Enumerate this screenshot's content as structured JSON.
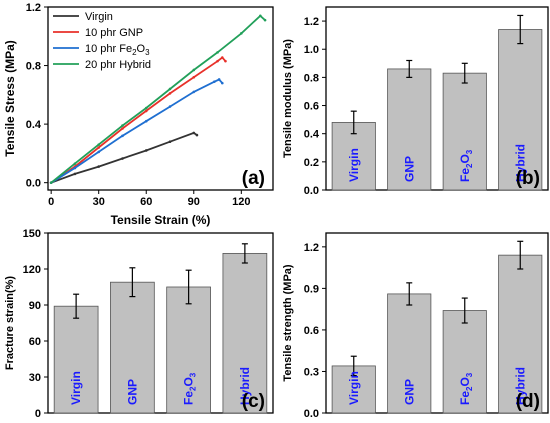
{
  "chart_data": [
    {
      "type": "line",
      "panel_label": "(a)",
      "xlabel": "Tensile Strain (%)",
      "ylabel": "Tensile Stress (MPa)",
      "xlim": [
        -2,
        140
      ],
      "ylim": [
        -0.05,
        1.2
      ],
      "xticks": [
        0,
        30,
        60,
        90,
        120
      ],
      "yticks": [
        0.0,
        0.4,
        0.8,
        1.2
      ],
      "ytick_labels": [
        "0.0",
        "0.4",
        "0.8",
        "1.2"
      ],
      "legend_position": "top-left",
      "series": [
        {
          "name": "Virgin",
          "name_main": "Virgin",
          "name_sub": "",
          "name_tail": "",
          "color": "#333333",
          "x": [
            0,
            15,
            30,
            45,
            60,
            75,
            90,
            92
          ],
          "y": [
            0,
            0.06,
            0.11,
            0.165,
            0.22,
            0.28,
            0.34,
            0.325
          ]
        },
        {
          "name": "10 phr GNP",
          "name_main": "10 phr GNP",
          "name_sub": "",
          "name_tail": "",
          "color": "#e8312a",
          "x": [
            0,
            15,
            30,
            45,
            60,
            75,
            90,
            105,
            108,
            110
          ],
          "y": [
            0,
            0.11,
            0.24,
            0.37,
            0.49,
            0.61,
            0.72,
            0.83,
            0.855,
            0.83
          ]
        },
        {
          "name": "10 phr Fe2O3",
          "name_main": "10 phr Fe",
          "name_sub": "2",
          "name_tail": "O",
          "name_sub2": "3",
          "color": "#1f6fd1",
          "x": [
            0,
            15,
            30,
            45,
            60,
            75,
            90,
            103,
            106,
            108
          ],
          "y": [
            0,
            0.1,
            0.21,
            0.32,
            0.42,
            0.52,
            0.62,
            0.69,
            0.705,
            0.68
          ]
        },
        {
          "name": "20 phr Hybrid",
          "name_main": "20 phr Hybrid",
          "name_sub": "",
          "name_tail": "",
          "color": "#22a05a",
          "x": [
            0,
            15,
            30,
            45,
            60,
            75,
            90,
            105,
            120,
            132,
            135
          ],
          "y": [
            0,
            0.13,
            0.26,
            0.39,
            0.51,
            0.64,
            0.77,
            0.89,
            1.02,
            1.14,
            1.11
          ]
        }
      ]
    },
    {
      "type": "bar",
      "panel_label": "(b)",
      "ylabel": "Tensile modulus (MPa)",
      "ylim": [
        0,
        1.3
      ],
      "yticks": [
        0.0,
        0.2,
        0.4,
        0.6,
        0.8,
        1.0,
        1.2
      ],
      "ytick_labels": [
        "0.0",
        "0.2",
        "0.4",
        "0.6",
        "0.8",
        "1.0",
        "1.2"
      ],
      "categories": [
        "Virgin",
        "GNP",
        "Fe2O3",
        "Hybrid"
      ],
      "values": [
        0.48,
        0.86,
        0.83,
        1.14
      ],
      "errors": [
        0.08,
        0.06,
        0.07,
        0.1
      ]
    },
    {
      "type": "bar",
      "panel_label": "(c)",
      "ylabel": "Fracture strain(%)",
      "ylim": [
        0,
        150
      ],
      "yticks": [
        0,
        30,
        60,
        90,
        120,
        150
      ],
      "ytick_labels": [
        "0",
        "30",
        "60",
        "90",
        "120",
        "150"
      ],
      "categories": [
        "Virgin",
        "GNP",
        "Fe2O3",
        "Hybrid"
      ],
      "values": [
        89,
        109,
        105,
        133
      ],
      "errors": [
        10,
        12,
        14,
        8
      ]
    },
    {
      "type": "bar",
      "panel_label": "(d)",
      "ylabel": "Tensile strength (MPa)",
      "ylim": [
        0,
        1.3
      ],
      "yticks": [
        0.0,
        0.3,
        0.6,
        0.9,
        1.2
      ],
      "ytick_labels": [
        "0.0",
        "0.3",
        "0.6",
        "0.9",
        "1.2"
      ],
      "categories": [
        "Virgin",
        "GNP",
        "Fe2O3",
        "Hybrid"
      ],
      "values": [
        0.34,
        0.86,
        0.74,
        1.14
      ],
      "errors": [
        0.07,
        0.08,
        0.09,
        0.1
      ]
    }
  ],
  "colors": {
    "bar_fill": "#c0c0c0",
    "bar_label": "#1a1aff",
    "axis": "#000000"
  }
}
